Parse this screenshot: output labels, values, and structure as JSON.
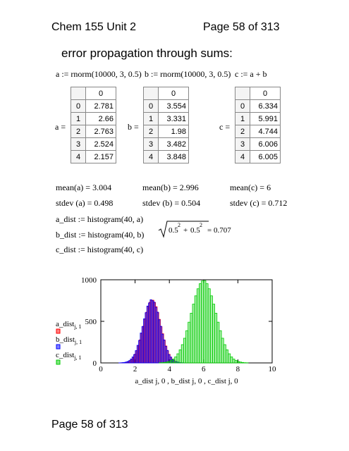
{
  "header": {
    "left": "Chem 155 Unit 2",
    "right": "Page 58 of 313"
  },
  "heading": "error propagation through sums:",
  "definitions": [
    "a := rnorm(10000, 3, 0.5)",
    "b := rnorm(10000, 3, 0.5)",
    "c := a + b"
  ],
  "tables": [
    {
      "label": "a =",
      "column": "0",
      "rows": [
        [
          "0",
          "2.781"
        ],
        [
          "1",
          "2.66"
        ],
        [
          "2",
          "2.763"
        ],
        [
          "3",
          "2.524"
        ],
        [
          "4",
          "2.157"
        ]
      ]
    },
    {
      "label": "b =",
      "column": "0",
      "rows": [
        [
          "0",
          "3.554"
        ],
        [
          "1",
          "3.331"
        ],
        [
          "2",
          "1.98"
        ],
        [
          "3",
          "3.482"
        ],
        [
          "4",
          "3.848"
        ]
      ]
    },
    {
      "label": "c =",
      "column": "0",
      "rows": [
        [
          "0",
          "6.334"
        ],
        [
          "1",
          "5.991"
        ],
        [
          "2",
          "4.744"
        ],
        [
          "3",
          "6.006"
        ],
        [
          "4",
          "6.005"
        ]
      ]
    }
  ],
  "means": [
    "mean(a) = 3.004",
    "mean(b) = 2.996",
    "mean(c) = 6"
  ],
  "stdevs": [
    "stdev (a) = 0.498",
    "stdev (b) = 0.504",
    "stdev (c) = 0.712"
  ],
  "histograms": [
    "a_dist := histogram(40, a)",
    "b_dist := histogram(40, b)",
    "c_dist := histogram(40, c)"
  ],
  "sqrt_expr": {
    "term": "0.5",
    "exponent": "2",
    "operator": "+",
    "result": "= 0.707"
  },
  "chart": {
    "type": "histogram",
    "xlabel": "a_dist j, 0 , b_dist j, 0 , c_dist j, 0",
    "xlim": [
      0,
      10
    ],
    "ylim": [
      0,
      1000
    ],
    "xticks": [
      0,
      2,
      4,
      6,
      8,
      10
    ],
    "yticks": [
      0,
      500,
      1000
    ],
    "series": [
      {
        "name": "a_dist",
        "subscript": "j, 1",
        "color": "#ff0000",
        "x": [
          1.15,
          1.245,
          1.34,
          1.435,
          1.53,
          1.625,
          1.72,
          1.815,
          1.91,
          2.005,
          2.1,
          2.195,
          2.29,
          2.385,
          2.48,
          2.575,
          2.67,
          2.765,
          2.86,
          2.955,
          3.05,
          3.145,
          3.24,
          3.335,
          3.43,
          3.525,
          3.62,
          3.715,
          3.81,
          3.905,
          4.0,
          4.095,
          4.19,
          4.285,
          4.38,
          4.475,
          4.57,
          4.665,
          4.76,
          4.855
        ],
        "values": [
          1,
          2,
          3,
          6,
          10,
          17,
          29,
          46,
          70,
          105,
          150,
          207,
          277,
          356,
          441,
          528,
          610,
          679,
          729,
          755,
          754,
          727,
          676,
          606,
          524,
          437,
          351,
          273,
          204,
          147,
          103,
          69,
          45,
          28,
          17,
          10,
          5,
          3,
          2,
          1
        ]
      },
      {
        "name": "b_dist",
        "subscript": "j, 1",
        "color": "#0000ff",
        "x": [
          1.1,
          1.196,
          1.292,
          1.388,
          1.484,
          1.58,
          1.676,
          1.772,
          1.868,
          1.964,
          2.06,
          2.156,
          2.252,
          2.348,
          2.444,
          2.54,
          2.636,
          2.732,
          2.828,
          2.924,
          3.02,
          3.116,
          3.212,
          3.308,
          3.404,
          3.5,
          3.596,
          3.692,
          3.788,
          3.884,
          3.98,
          4.076,
          4.172,
          4.268,
          4.364,
          4.46,
          4.556,
          4.652,
          4.748,
          4.844
        ],
        "values": [
          1,
          2,
          4,
          6,
          11,
          18,
          28,
          47,
          72,
          101,
          148,
          212,
          271,
          360,
          437,
          531,
          604,
          684,
          721,
          760,
          748,
          731,
          669,
          611,
          519,
          441,
          346,
          277,
          199,
          151,
          99,
          71,
          43,
          29,
          16,
          11,
          6,
          3,
          2,
          1
        ]
      },
      {
        "name": "c_dist",
        "subscript": "j, 1",
        "color": "#00cc00",
        "x": [
          3.465,
          3.595,
          3.725,
          3.855,
          3.985,
          4.115,
          4.245,
          4.375,
          4.505,
          4.635,
          4.765,
          4.895,
          5.025,
          5.155,
          5.285,
          5.415,
          5.545,
          5.675,
          5.805,
          5.935,
          6.065,
          6.195,
          6.325,
          6.455,
          6.585,
          6.715,
          6.845,
          6.975,
          7.105,
          7.235,
          7.365,
          7.495,
          7.625,
          7.755,
          7.885,
          8.015,
          8.145,
          8.275,
          8.405,
          8.535
        ],
        "values": [
          2,
          3,
          6,
          11,
          18,
          30,
          47,
          73,
          110,
          158,
          220,
          297,
          388,
          490,
          598,
          707,
          807,
          892,
          953,
          986,
          990,
          953,
          892,
          807,
          707,
          598,
          490,
          388,
          297,
          220,
          158,
          110,
          73,
          47,
          30,
          18,
          11,
          6,
          3,
          2
        ]
      }
    ]
  },
  "footer": "Page 58 of 313"
}
